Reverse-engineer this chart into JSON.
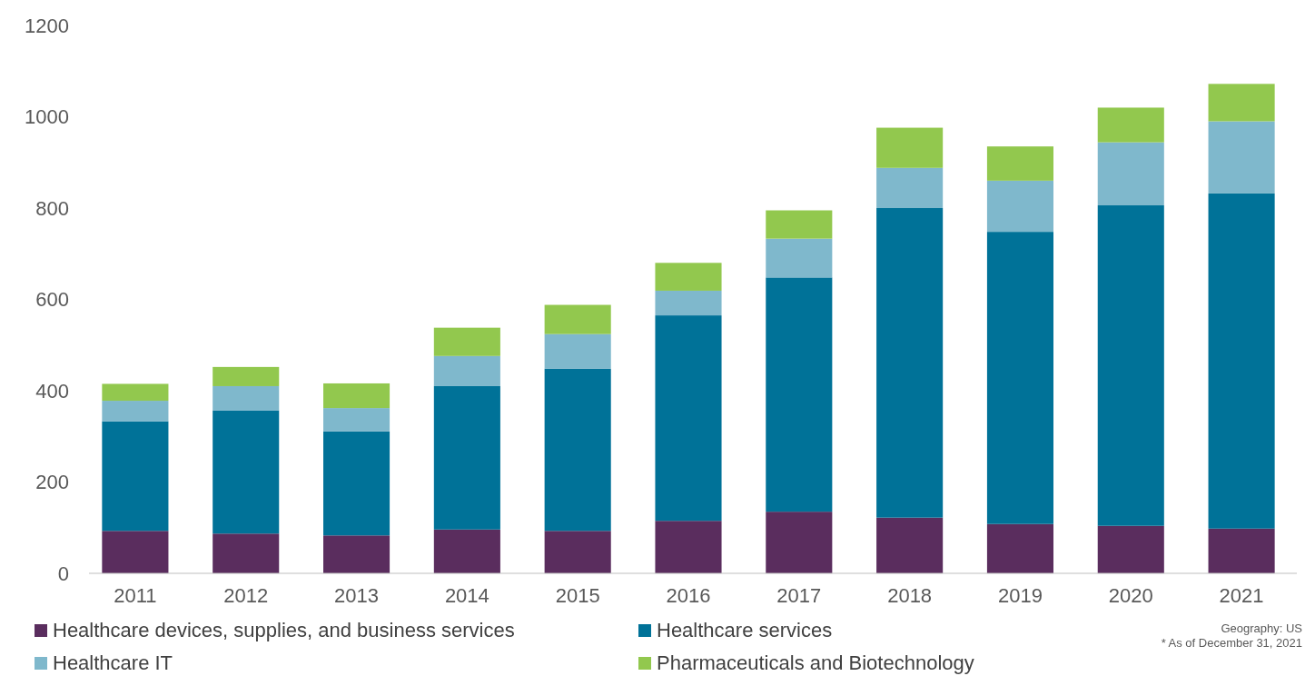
{
  "chart_data": {
    "type": "bar",
    "stacked": true,
    "categories": [
      "2011",
      "2012",
      "2013",
      "2014",
      "2015",
      "2016",
      "2017",
      "2018",
      "2019",
      "2020",
      "2021"
    ],
    "series": [
      {
        "name": "Healthcare devices, supplies, and business services",
        "color": "#5a2d5e",
        "values": [
          93,
          87,
          83,
          96,
          93,
          115,
          135,
          122,
          108,
          104,
          98
        ]
      },
      {
        "name": "Healthcare services",
        "color": "#007298",
        "values": [
          240,
          270,
          228,
          314,
          355,
          450,
          513,
          678,
          640,
          702,
          734
        ]
      },
      {
        "name": "Healthcare IT",
        "color": "#7fb8cc",
        "values": [
          45,
          53,
          51,
          66,
          76,
          54,
          85,
          88,
          112,
          138,
          158
        ]
      },
      {
        "name": "Pharmaceuticals and Biotechnology",
        "color": "#92c84e",
        "values": [
          37,
          42,
          54,
          62,
          64,
          61,
          62,
          88,
          75,
          76,
          82
        ]
      }
    ],
    "ylim": [
      0,
      1200
    ],
    "yticks": [
      0,
      200,
      400,
      600,
      800,
      1000,
      1200
    ],
    "grid": false,
    "legend": "bottom",
    "annotations": [
      "Geography: US",
      "* As of December 31, 2021"
    ]
  }
}
